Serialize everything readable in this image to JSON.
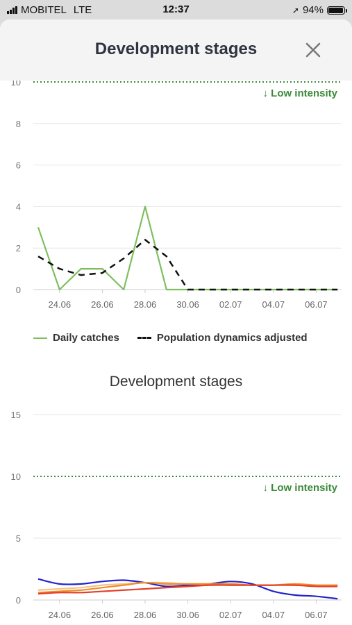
{
  "status_bar": {
    "carrier": "MOBITEL",
    "network": "LTE",
    "time": "12:37",
    "battery": "94%",
    "battery_level": 0.94
  },
  "header": {
    "title": "Development stages",
    "close_icon": "close-icon"
  },
  "chart_data": [
    {
      "type": "line",
      "title": "",
      "x": [
        "23.06",
        "24.06",
        "25.06",
        "26.06",
        "27.06",
        "28.06",
        "29.06",
        "30.06",
        "01.07",
        "02.07",
        "03.07",
        "04.07",
        "05.07",
        "06.07",
        "07.07"
      ],
      "x_tick_labels": [
        "24.06",
        "26.06",
        "28.06",
        "30.06",
        "02.07",
        "04.07",
        "06.07"
      ],
      "y_ticks": [
        "10",
        "8",
        "6",
        "4",
        "2",
        "0"
      ],
      "ylim": [
        0,
        10
      ],
      "threshold": {
        "value": 10,
        "label": "↓ Low intensity",
        "color": "#3a8a3a"
      },
      "series": [
        {
          "name": "Daily catches",
          "color": "#7dbf5e",
          "style": "solid",
          "values": [
            3,
            0,
            1,
            1,
            0,
            4,
            0,
            0,
            0,
            0,
            0,
            0,
            0,
            0,
            0
          ]
        },
        {
          "name": "Population dynamics adjusted",
          "color": "#111111",
          "style": "dashed",
          "values": [
            1.6,
            1.0,
            0.7,
            0.8,
            1.5,
            2.4,
            1.6,
            0,
            0,
            0,
            0,
            0,
            0,
            0,
            0
          ]
        }
      ],
      "legend": "bottom"
    },
    {
      "type": "line",
      "title": "Development stages",
      "x": [
        "23.06",
        "24.06",
        "25.06",
        "26.06",
        "27.06",
        "28.06",
        "29.06",
        "30.06",
        "01.07",
        "02.07",
        "03.07",
        "04.07",
        "05.07",
        "06.07",
        "07.07"
      ],
      "x_tick_labels": [
        "24.06",
        "26.06",
        "28.06",
        "30.06",
        "02.07",
        "04.07",
        "06.07"
      ],
      "y_ticks": [
        "15",
        "10",
        "5",
        "0"
      ],
      "ylim": [
        0,
        15
      ],
      "threshold": {
        "value": 10,
        "label": "↓ Low intensity",
        "color": "#3a8a3a"
      },
      "series": [
        {
          "color": "#2222cc",
          "values": [
            1.7,
            1.3,
            1.3,
            1.5,
            1.6,
            1.4,
            1.1,
            1.2,
            1.3,
            1.5,
            1.3,
            0.7,
            0.4,
            0.3,
            0.1
          ]
        },
        {
          "color": "#f0c48a",
          "values": [
            0.8,
            0.9,
            1.0,
            1.2,
            1.3,
            1.4,
            1.4,
            1.3,
            1.3,
            1.2,
            1.2,
            1.2,
            1.2,
            1.2,
            1.2
          ]
        },
        {
          "color": "#f28c28",
          "values": [
            0.6,
            0.7,
            0.8,
            1.0,
            1.2,
            1.4,
            1.3,
            1.3,
            1.3,
            1.3,
            1.2,
            1.2,
            1.3,
            1.2,
            1.2
          ]
        },
        {
          "color": "#e2402a",
          "values": [
            0.5,
            0.6,
            0.6,
            0.7,
            0.8,
            0.9,
            1.0,
            1.1,
            1.2,
            1.2,
            1.2,
            1.2,
            1.2,
            1.1,
            1.1
          ]
        }
      ]
    }
  ]
}
